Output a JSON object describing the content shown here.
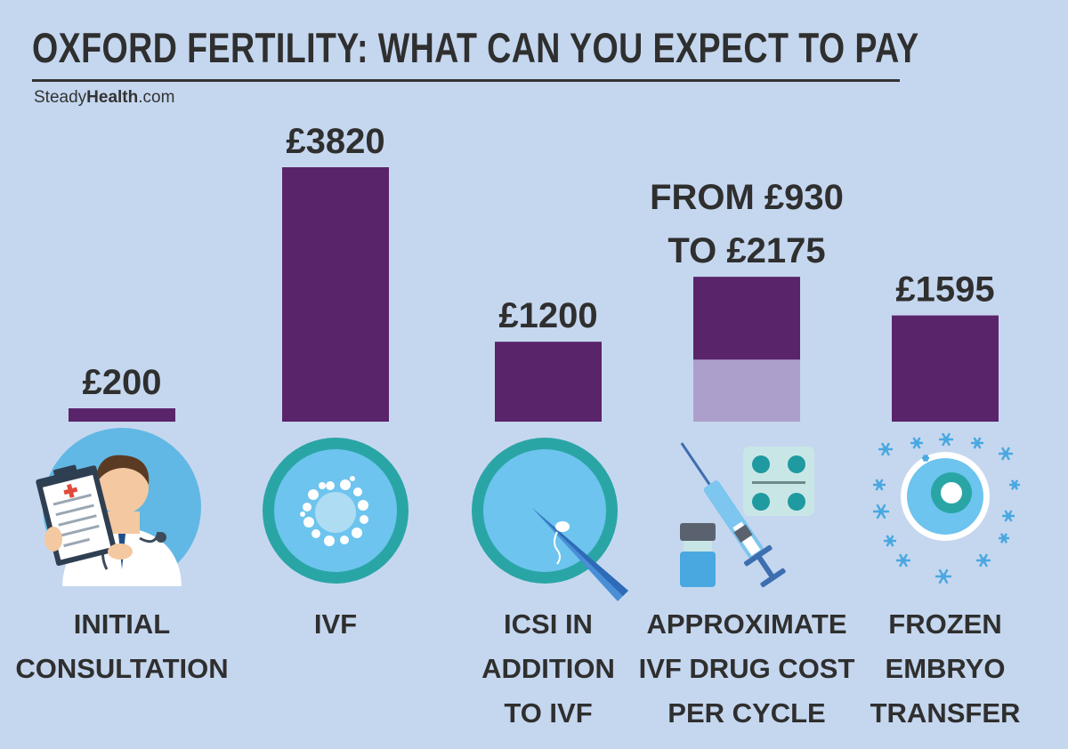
{
  "title": "OXFORD FERTILITY: WHAT CAN YOU EXPECT TO PAY",
  "brand": {
    "prefix": "Steady",
    "bold": "Health",
    "suffix": ".com"
  },
  "colors": {
    "bar": "#5a246b",
    "bar_light": "#ad9fcc",
    "background": "#c5d7ef",
    "text": "#2f2f2f"
  },
  "chart_data": {
    "type": "bar",
    "categories": [
      [
        "INITIAL",
        "CONSULTATION"
      ],
      [
        "IVF"
      ],
      [
        "ICSI IN",
        "ADDITION",
        "TO IVF"
      ],
      [
        "APPROXIMATE",
        "IVF DRUG COST",
        "PER CYCLE"
      ],
      [
        "FROZEN",
        "EMBRYO",
        "TRANSFER"
      ]
    ],
    "values": [
      200,
      3820,
      1200,
      2175,
      1595
    ],
    "range_low": [
      null,
      null,
      null,
      930,
      null
    ],
    "value_labels": [
      [
        "£200"
      ],
      [
        "£3820"
      ],
      [
        "£1200"
      ],
      [
        "FROM £930",
        "TO £2175"
      ],
      [
        "£1595"
      ]
    ],
    "icons": [
      "doctor-icon",
      "ivf-cell-icon",
      "icsi-needle-icon",
      "syringe-pills-icon",
      "frozen-embryo-icon"
    ],
    "ylim": [
      0,
      3820
    ]
  }
}
